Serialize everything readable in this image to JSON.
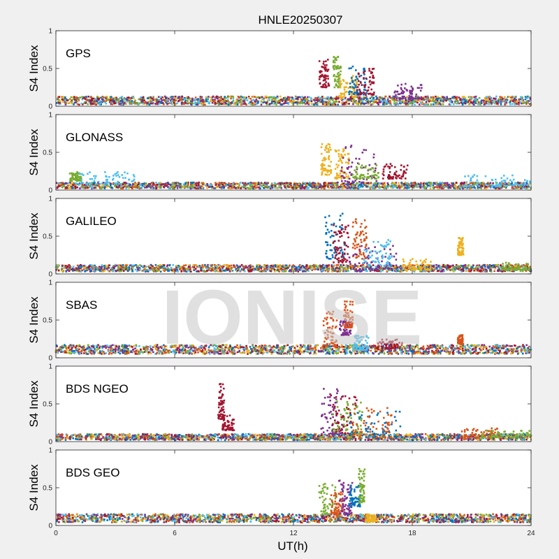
{
  "chart_data": {
    "type": "scatter",
    "title": "HNLE20250307",
    "xlabel": "UT(h)",
    "ylabel": "S4 Index",
    "xlim": [
      0,
      24
    ],
    "ylim": [
      0,
      1
    ],
    "xticks": [
      "0",
      "6",
      "12",
      "18",
      "24"
    ],
    "yticks": [
      "0",
      "0.5",
      "1"
    ],
    "watermark": "IONISE",
    "colors": [
      "#0072BD",
      "#D95319",
      "#EDB120",
      "#7E2F8E",
      "#77AC30",
      "#4DBEEE",
      "#A2142F"
    ],
    "panels": [
      {
        "name": "GPS",
        "baseline": [
          0.02,
          0.13
        ],
        "features": [
          {
            "x0": 13.3,
            "x1": 13.8,
            "y0": 0.25,
            "y1": 0.62,
            "color": "#A2142F"
          },
          {
            "x0": 14.0,
            "x1": 14.4,
            "y0": 0.25,
            "y1": 0.68,
            "color": "#77AC30"
          },
          {
            "x0": 14.3,
            "x1": 15.2,
            "y0": 0.12,
            "y1": 0.42,
            "color": "#EDB120"
          },
          {
            "x0": 14.8,
            "x1": 15.7,
            "y0": 0.15,
            "y1": 0.55,
            "color": "#0072BD"
          },
          {
            "x0": 15.2,
            "x1": 16.1,
            "y0": 0.15,
            "y1": 0.5,
            "color": "#A2142F"
          },
          {
            "x0": 17.0,
            "x1": 18.5,
            "y0": 0.1,
            "y1": 0.3,
            "color": "#7E2F8E"
          }
        ]
      },
      {
        "name": "GLONASS",
        "baseline": [
          0.02,
          0.1
        ],
        "features": [
          {
            "x0": 0.7,
            "x1": 1.3,
            "y0": 0.12,
            "y1": 0.24,
            "color": "#77AC30"
          },
          {
            "x0": 1.0,
            "x1": 4.0,
            "y0": 0.08,
            "y1": 0.25,
            "color": "#4DBEEE"
          },
          {
            "x0": 13.4,
            "x1": 13.9,
            "y0": 0.2,
            "y1": 0.62,
            "color": "#EDB120"
          },
          {
            "x0": 14.1,
            "x1": 14.8,
            "y0": 0.15,
            "y1": 0.55,
            "color": "#EDB120"
          },
          {
            "x0": 14.4,
            "x1": 16.2,
            "y0": 0.1,
            "y1": 0.6,
            "color": "#7E2F8E"
          },
          {
            "x0": 15.0,
            "x1": 16.3,
            "y0": 0.15,
            "y1": 0.35,
            "color": "#77AC30"
          },
          {
            "x0": 16.5,
            "x1": 17.8,
            "y0": 0.15,
            "y1": 0.35,
            "color": "#A2142F"
          },
          {
            "x0": 20.5,
            "x1": 24.0,
            "y0": 0.05,
            "y1": 0.2,
            "color": "#4DBEEE"
          }
        ]
      },
      {
        "name": "GALILEO",
        "baseline": [
          0.03,
          0.12
        ],
        "features": [
          {
            "x0": 13.6,
            "x1": 14.6,
            "y0": 0.2,
            "y1": 0.8,
            "color": "#0072BD"
          },
          {
            "x0": 14.0,
            "x1": 14.8,
            "y0": 0.15,
            "y1": 0.65,
            "color": "#A2142F"
          },
          {
            "x0": 15.0,
            "x1": 15.7,
            "y0": 0.2,
            "y1": 0.76,
            "color": "#D95319"
          },
          {
            "x0": 14.8,
            "x1": 17.2,
            "y0": 0.05,
            "y1": 0.4,
            "color": "#7E2F8E"
          },
          {
            "x0": 15.5,
            "x1": 17.0,
            "y0": 0.1,
            "y1": 0.45,
            "color": "#4DBEEE"
          },
          {
            "x0": 17.5,
            "x1": 19.0,
            "y0": 0.05,
            "y1": 0.2,
            "color": "#EDB120"
          },
          {
            "x0": 20.3,
            "x1": 20.6,
            "y0": 0.25,
            "y1": 0.48,
            "color": "#EDB120"
          },
          {
            "x0": 22.5,
            "x1": 24.0,
            "y0": 0.05,
            "y1": 0.15,
            "color": "#77AC30"
          }
        ]
      },
      {
        "name": "SBAS",
        "baseline": [
          0.05,
          0.17
        ],
        "features": [
          {
            "x0": 13.5,
            "x1": 14.2,
            "y0": 0.15,
            "y1": 0.62,
            "color": "#D95319"
          },
          {
            "x0": 14.3,
            "x1": 14.9,
            "y0": 0.3,
            "y1": 0.5,
            "color": "#7E2F8E"
          },
          {
            "x0": 14.5,
            "x1": 15.0,
            "y0": 0.4,
            "y1": 0.75,
            "color": "#D95319"
          },
          {
            "x0": 15.0,
            "x1": 15.8,
            "y0": 0.1,
            "y1": 0.3,
            "color": "#4DBEEE"
          },
          {
            "x0": 16.2,
            "x1": 17.5,
            "y0": 0.12,
            "y1": 0.25,
            "color": "#A2142F"
          },
          {
            "x0": 20.3,
            "x1": 20.6,
            "y0": 0.18,
            "y1": 0.3,
            "color": "#D95319"
          }
        ]
      },
      {
        "name": "BDS NGEO",
        "baseline": [
          0.02,
          0.1
        ],
        "features": [
          {
            "x0": 8.2,
            "x1": 8.5,
            "y0": 0.3,
            "y1": 0.78,
            "color": "#A2142F"
          },
          {
            "x0": 8.4,
            "x1": 9.0,
            "y0": 0.15,
            "y1": 0.35,
            "color": "#A2142F"
          },
          {
            "x0": 13.4,
            "x1": 14.5,
            "y0": 0.1,
            "y1": 0.72,
            "color": "#7E2F8E"
          },
          {
            "x0": 13.8,
            "x1": 15.2,
            "y0": 0.1,
            "y1": 0.62,
            "color": "#A2142F"
          },
          {
            "x0": 14.0,
            "x1": 15.5,
            "y0": 0.1,
            "y1": 0.55,
            "color": "#77AC30"
          },
          {
            "x0": 14.8,
            "x1": 17.5,
            "y0": 0.05,
            "y1": 0.4,
            "color": "#0072BD"
          },
          {
            "x0": 15.0,
            "x1": 17.0,
            "y0": 0.05,
            "y1": 0.45,
            "color": "#D95319"
          },
          {
            "x0": 20.5,
            "x1": 22.5,
            "y0": 0.05,
            "y1": 0.18,
            "color": "#D95319"
          },
          {
            "x0": 21.5,
            "x1": 24.0,
            "y0": 0.05,
            "y1": 0.15,
            "color": "#77AC30"
          }
        ]
      },
      {
        "name": "BDS GEO",
        "baseline": [
          0.04,
          0.15
        ],
        "features": [
          {
            "x0": 13.3,
            "x1": 14.2,
            "y0": 0.15,
            "y1": 0.58,
            "color": "#77AC30"
          },
          {
            "x0": 13.9,
            "x1": 14.5,
            "y0": 0.15,
            "y1": 0.45,
            "color": "#D95319"
          },
          {
            "x0": 14.3,
            "x1": 15.0,
            "y0": 0.15,
            "y1": 0.6,
            "color": "#7E2F8E"
          },
          {
            "x0": 14.8,
            "x1": 15.4,
            "y0": 0.25,
            "y1": 0.55,
            "color": "#0072BD"
          },
          {
            "x0": 15.3,
            "x1": 15.6,
            "y0": 0.3,
            "y1": 0.75,
            "color": "#77AC30"
          },
          {
            "x0": 15.6,
            "x1": 16.2,
            "y0": 0.05,
            "y1": 0.15,
            "color": "#EDB120"
          }
        ]
      }
    ]
  }
}
